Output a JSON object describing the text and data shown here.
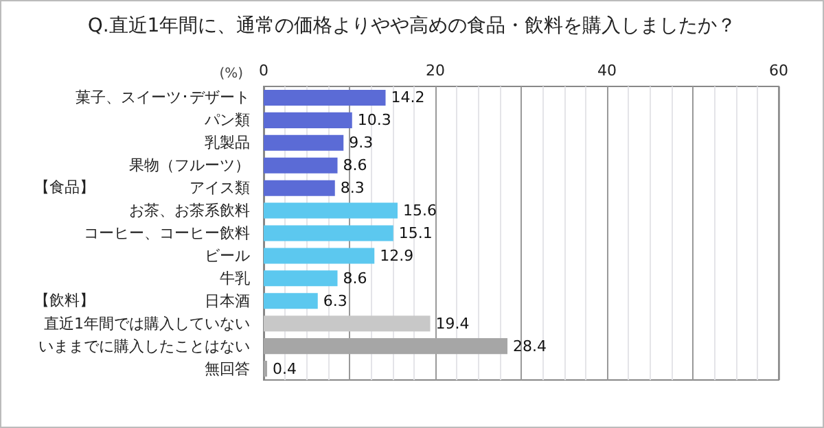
{
  "chart_data": {
    "type": "bar",
    "orientation": "horizontal",
    "title": "Q.直近1年間に、通常の価格よりやや高めの食品・飲料を購入しましたか？",
    "xlabel": "(%)",
    "categories": [
      "菓子、スイーツ･デザート",
      "パン類",
      "乳製品",
      "果物（フルーツ）",
      "アイス類",
      "お茶、お茶系飲料",
      "コーヒー、コーヒー飲料",
      "ビール",
      "牛乳",
      "日本酒",
      "直近1年間では購入していない",
      "いままでに購入したことはない",
      "無回答"
    ],
    "values": [
      14.2,
      10.3,
      9.3,
      8.6,
      8.3,
      15.6,
      15.1,
      12.9,
      8.6,
      6.3,
      19.4,
      28.4,
      0.4
    ],
    "colors": [
      "#5b6bd6",
      "#5b6bd6",
      "#5b6bd6",
      "#5b6bd6",
      "#5b6bd6",
      "#5cc8ef",
      "#5cc8ef",
      "#5cc8ef",
      "#5cc8ef",
      "#5cc8ef",
      "#c8c8c8",
      "#a6a6a6",
      "#a6a6a6"
    ],
    "xlim": [
      0,
      60
    ],
    "xticks": [
      0,
      20,
      40,
      60
    ],
    "grid": "x",
    "data_labels": true,
    "annotations": [
      "【食品】",
      "【飲料】"
    ]
  }
}
